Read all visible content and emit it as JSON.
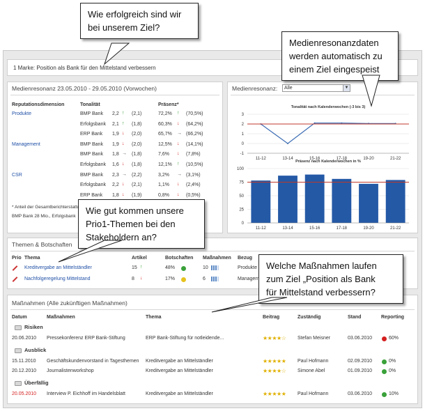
{
  "callouts": {
    "top": [
      "Wie erfolgreich sind wir",
      "bei unserem Ziel?"
    ],
    "medienresonanz": [
      "Medienresonanzdaten",
      "werden automatisch zu",
      "einem Ziel eingespeist"
    ],
    "prio": [
      "Wie gut kommen unsere",
      "Prio1-Themen bei den",
      "Stakeholdern an?"
    ],
    "massnahmen": [
      "Welche Maßnahmen laufen",
      "zum Ziel „Position als Bank",
      "für Mittelstand verbessern?"
    ]
  },
  "goal_bar": {
    "text": "1 Marke: Position als Bank für den Mittelstand verbessern"
  },
  "medienresonanz": {
    "title": "Medienresonanz 23.05.2010 - 29.05.2010 (Vorwochen)",
    "headers": {
      "dimension": "Reputationsdimension",
      "tonalitaet": "Tonalität",
      "praesenz": "Präsenz*"
    },
    "rows": [
      {
        "dim": "Produkte",
        "bank": "BMP Bank",
        "ton": "2,2",
        "tdir": "up",
        "tprev": "(2,1)",
        "pres": "72,2%",
        "pdir": "up",
        "pprev": "(70,5%)"
      },
      {
        "dim": "",
        "bank": "Erfolgsbank",
        "ton": "2,1",
        "tdir": "up",
        "tprev": "(1,8)",
        "pres": "60,3%",
        "pdir": "down",
        "pprev": "(64,2%)"
      },
      {
        "dim": "",
        "bank": "ERP Bank",
        "ton": "1,9",
        "tdir": "down",
        "tprev": "(2,0)",
        "pres": "65,7%",
        "pdir": "flat",
        "pprev": "(66,2%)"
      },
      {
        "dim": "Management",
        "bank": "BMP Bank",
        "ton": "1,9",
        "tdir": "down",
        "tprev": "(2,0)",
        "pres": "12,5%",
        "pdir": "down",
        "pprev": "(14,1%)"
      },
      {
        "dim": "",
        "bank": "BMP Bank",
        "ton": "1,8",
        "tdir": "flat",
        "tprev": "(1,8)",
        "pres": "7,6%",
        "pdir": "down",
        "pprev": "(7,8%)"
      },
      {
        "dim": "",
        "bank": "Erfolgsbank",
        "ton": "1,6",
        "tdir": "down",
        "tprev": "(1,8)",
        "pres": "12,1%",
        "pdir": "up",
        "pprev": "(10,5%)"
      },
      {
        "dim": "CSR",
        "bank": "BMP Bank",
        "ton": "2,3",
        "tdir": "flat",
        "tprev": "(2,2)",
        "pres": "3,2%",
        "pdir": "flat",
        "pprev": "(3,1%)"
      },
      {
        "dim": "",
        "bank": "Erfolgsbank",
        "ton": "2,2",
        "tdir": "down",
        "tprev": "(2,1)",
        "pres": "1,1%",
        "pdir": "down",
        "pprev": "(2,4%)"
      },
      {
        "dim": "",
        "bank": "ERP Bank",
        "ton": "1,8",
        "tdir": "down",
        "tprev": "(1,9)",
        "pres": "0,8%",
        "pdir": "down",
        "pprev": "(0,5%)"
      }
    ],
    "footnote": "* Anteil der Gesamtberichterstattung",
    "footnote2": "BMP Bank 28 Mio., Erfolgsbank"
  },
  "medienresonanz_chart": {
    "title": "Medienresonanz:",
    "select": "Alle"
  },
  "chart_data": [
    {
      "type": "line",
      "title": "Tonalität nach Kalenderwochen (-3 bis 3)",
      "categories": [
        "11-12",
        "13-14",
        "15-16",
        "17-18",
        "19-20",
        "21-22"
      ],
      "values": [
        2,
        0,
        2.1,
        2.1,
        2.05,
        2.05
      ],
      "reference": 2,
      "yticks": [
        "3",
        "2",
        "1",
        "0",
        "-1"
      ],
      "ylim": [
        -1,
        3
      ]
    },
    {
      "type": "bar",
      "title": "Präsenz nach Kalenderwochen in %",
      "categories": [
        "11-12",
        "13-14",
        "15-16",
        "17-18",
        "19-20",
        "21-22"
      ],
      "values": [
        78,
        87,
        89,
        81,
        72,
        79
      ],
      "reference": 75,
      "yticks": [
        "100",
        "75",
        "50",
        "25",
        "0"
      ],
      "ylim": [
        0,
        100
      ]
    }
  ],
  "themen": {
    "title": "Themen & Botschaften",
    "headers": {
      "prio": "Prio",
      "thema": "Thema",
      "artikel": "Artikel",
      "botschaften": "Botschaften",
      "massnahmen": "Maßnahmen",
      "bezug": "Bezug"
    },
    "rows": [
      {
        "thema": "Kreditvergabe an Mittelständler",
        "artikel": "15",
        "adir": "up",
        "botschaften": "48%",
        "dot": "#3aa13a",
        "massnahmen": "10",
        "bezug": "Produkte >"
      },
      {
        "thema": "Nachfolgeregelung Mittelstand",
        "artikel": "8",
        "adir": "down",
        "botschaften": "17%",
        "dot": "#e6c21e",
        "massnahmen": "6",
        "bezug": "Manageme"
      }
    ]
  },
  "massnahmen": {
    "title": "Maßnahmen (Alle zukünftigen Maßnahmen)",
    "headers": {
      "datum": "Datum",
      "massnahmen": "Maßnahmen",
      "thema": "Thema",
      "beitrag": "Beitrag",
      "zustaendig": "Zuständig",
      "stand": "Stand",
      "reporting": "Reporting"
    },
    "groups": [
      {
        "name": "Risiken",
        "rows": [
          {
            "datum": "20.06.2010",
            "red": false,
            "mass": "Pressekonferenz ERP Bank-Stiftung",
            "thema": "ERP Bank-Stiftung für notleidende...",
            "stars": "★★★★☆",
            "zust": "Stefan Meisner",
            "stand": "03.06.2010",
            "dot": "#d42020",
            "rep": "60%"
          }
        ]
      },
      {
        "name": "Ausblick",
        "rows": [
          {
            "datum": "15.11.2010",
            "red": false,
            "mass": "Geschäftskundenvorstand in Tagesthemen",
            "thema": "Kreditvergabe an Mittelständler",
            "stars": "★★★★★",
            "zust": "Paul Hofmann",
            "stand": "02.09.2010",
            "dot": "#3aa13a",
            "rep": "0%"
          },
          {
            "datum": "20.12.2010",
            "red": false,
            "mass": "Journalistenworkshop",
            "thema": "Kreditvergabe an Mittelständler",
            "stars": "★★★★☆",
            "zust": "Simone Abel",
            "stand": "01.09.2010",
            "dot": "#3aa13a",
            "rep": "0%"
          }
        ]
      },
      {
        "name": "Überfällig",
        "rows": [
          {
            "datum": "20.05.2010",
            "red": true,
            "mass": "Interview P. Eichhoff im Handelsblatt",
            "thema": "Kreditvergabe an Mittelständler",
            "stars": "★★★★★",
            "zust": "Paul Hofmann",
            "stand": "03.06.2010",
            "dot": "#3aa13a",
            "rep": "10%"
          }
        ]
      }
    ]
  }
}
